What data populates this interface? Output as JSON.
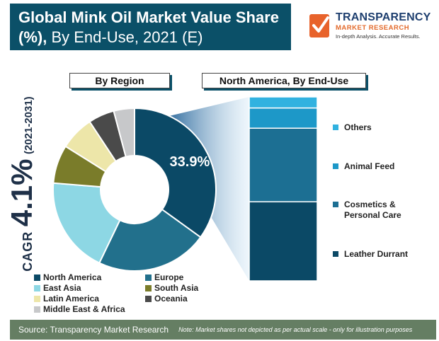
{
  "header": {
    "title_bold": "Global Mink Oil Market Value Share (%),",
    "title_rest": "By End-Use, 2021 (E)"
  },
  "logo": {
    "line1": "TRANSPARENCY",
    "line2": "MARKET RESEARCH",
    "line3": "In-depth Analysis. Accurate Results."
  },
  "cagr": {
    "label": "CAGR",
    "value": "4.1%",
    "period": "(2021-2031)"
  },
  "tabs": {
    "region": "By Region",
    "north_america": "North America, By End-Use"
  },
  "chart_data": [
    {
      "type": "pie",
      "title": "By Region",
      "categories": [
        "North America",
        "Europe",
        "East Asia",
        "South Asia",
        "Latin America",
        "Oceania",
        "Middle East & Africa"
      ],
      "values": [
        33.9,
        21.5,
        18.6,
        7.4,
        6.6,
        5.0,
        4.0
      ],
      "colors": [
        "#0b4966",
        "#22708c",
        "#8dd7e4",
        "#7a7c2a",
        "#ede6a9",
        "#4a4a4a",
        "#c7c8ca"
      ],
      "data_labels": [
        {
          "category": "North America",
          "text": "33.9%"
        }
      ],
      "donut": true
    },
    {
      "type": "bar",
      "stacked": true,
      "title": "North America, By End-Use",
      "categories": [
        "North America"
      ],
      "series": [
        {
          "name": "Leather Durrant",
          "values": [
            43
          ],
          "color": "#0b4966"
        },
        {
          "name": "Cosmetics & Personal Care",
          "values": [
            40
          ],
          "color": "#1c6f93"
        },
        {
          "name": "Animal Feed",
          "values": [
            11
          ],
          "color": "#1d98c8"
        },
        {
          "name": "Others",
          "values": [
            6
          ],
          "color": "#31b2e0"
        }
      ],
      "ylim": [
        0,
        100
      ]
    }
  ],
  "legend_left": [
    {
      "name": "North America",
      "color": "#0b4966"
    },
    {
      "name": "Europe",
      "color": "#22708c"
    },
    {
      "name": "East Asia",
      "color": "#8dd7e4"
    },
    {
      "name": "South Asia",
      "color": "#7a7c2a"
    },
    {
      "name": "Latin America",
      "color": "#ede6a9"
    },
    {
      "name": "Oceania",
      "color": "#4a4a4a"
    },
    {
      "name": "Middle East & Africa",
      "color": "#c7c8ca"
    }
  ],
  "legend_right": [
    {
      "name": "Others",
      "color": "#31b2e0"
    },
    {
      "name": "Animal Feed",
      "color": "#1d98c8"
    },
    {
      "name": "Cosmetics &\nPersonal Care",
      "color": "#1c6f93"
    },
    {
      "name": "Leather Durrant",
      "color": "#0b4966"
    }
  ],
  "footer": {
    "source": "Source: Transparency Market Research",
    "note": "Note: Market shares not depicted as per actual scale - only for illustration purposes"
  }
}
